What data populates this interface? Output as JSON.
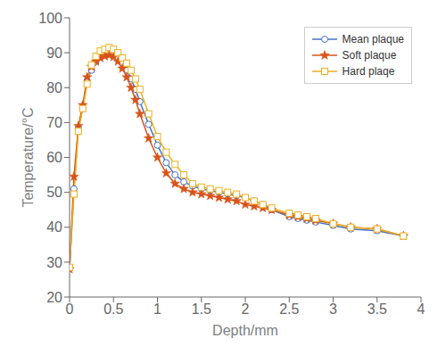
{
  "chart_data": {
    "type": "line",
    "xlabel": "Depth/mm",
    "ylabel": "Temperature/°C",
    "x": [
      0.0,
      0.05,
      0.1,
      0.15,
      0.2,
      0.25,
      0.3,
      0.35,
      0.4,
      0.45,
      0.5,
      0.55,
      0.6,
      0.65,
      0.7,
      0.75,
      0.8,
      0.9,
      1.0,
      1.1,
      1.2,
      1.3,
      1.4,
      1.5,
      1.6,
      1.7,
      1.8,
      1.9,
      2.0,
      2.1,
      2.2,
      2.3,
      2.5,
      2.6,
      2.7,
      2.8,
      3.0,
      3.2,
      3.5,
      3.8
    ],
    "series": [
      {
        "name": "Mean plaque",
        "color": "#4472C4",
        "marker": "circle",
        "values": [
          28.5,
          51.0,
          68.5,
          74.0,
          82.0,
          85.0,
          87.5,
          89.0,
          89.8,
          90.0,
          89.5,
          88.5,
          87.0,
          85.0,
          82.5,
          79.5,
          76.0,
          69.5,
          63.5,
          58.5,
          55.0,
          53.0,
          51.8,
          51.0,
          50.5,
          50.0,
          49.5,
          49.0,
          48.5,
          47.5,
          46.5,
          45.0,
          43.0,
          42.5,
          42.0,
          41.5,
          40.5,
          39.5,
          39.0,
          37.5
        ]
      },
      {
        "name": "Soft plaque",
        "color": "#D95319",
        "marker": "star",
        "values": [
          28.0,
          54.5,
          69.0,
          75.0,
          83.0,
          86.0,
          87.5,
          88.5,
          89.0,
          89.3,
          88.8,
          87.5,
          85.5,
          83.0,
          80.0,
          76.5,
          72.5,
          65.5,
          60.0,
          55.5,
          52.5,
          51.0,
          50.0,
          49.5,
          49.0,
          48.5,
          48.0,
          47.5,
          46.5,
          46.0,
          45.5,
          45.0,
          43.5,
          43.0,
          42.5,
          42.0,
          41.0,
          40.0,
          39.5,
          37.5
        ]
      },
      {
        "name": "Hard plaqe",
        "color": "#EDB120",
        "marker": "square",
        "values": [
          28.5,
          49.5,
          67.5,
          74.0,
          81.0,
          86.5,
          89.0,
          90.5,
          91.0,
          91.5,
          91.0,
          90.0,
          88.5,
          87.0,
          85.0,
          82.5,
          79.5,
          72.5,
          66.0,
          61.5,
          58.0,
          55.0,
          52.5,
          51.5,
          51.0,
          50.5,
          50.0,
          49.5,
          48.5,
          47.5,
          46.5,
          45.5,
          44.0,
          43.5,
          43.0,
          42.5,
          41.0,
          40.0,
          39.5,
          37.5
        ]
      }
    ],
    "xlim": [
      0,
      4
    ],
    "ylim": [
      20,
      100
    ],
    "xticks": [
      0,
      0.5,
      1,
      1.5,
      2,
      2.5,
      3,
      3.5,
      4
    ],
    "yticks": [
      20,
      30,
      40,
      50,
      60,
      70,
      80,
      90,
      100
    ],
    "grid": false,
    "legend": "upper right"
  }
}
